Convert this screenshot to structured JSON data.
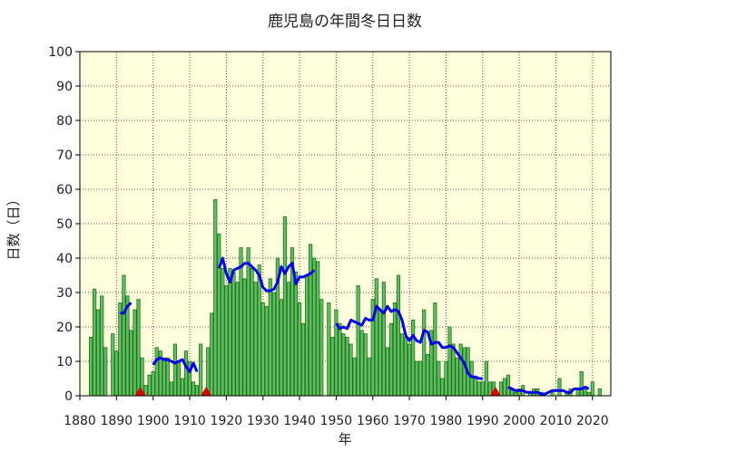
{
  "chart_data": {
    "type": "bar",
    "title": "鹿児島の年間冬日日数",
    "xlabel": "年",
    "ylabel": "日数（日）",
    "xlim": [
      1880,
      2025
    ],
    "ylim": [
      0,
      100
    ],
    "xticks": [
      1880,
      1890,
      1900,
      1910,
      1920,
      1930,
      1940,
      1950,
      1960,
      1970,
      1980,
      1990,
      2000,
      2010,
      2020
    ],
    "yticks": [
      0,
      10,
      20,
      30,
      40,
      50,
      60,
      70,
      80,
      90,
      100
    ],
    "grid": true,
    "plot_background": "#ffffdd",
    "bar_fill": "#5fc05f",
    "bar_edge": "#1f6f1f",
    "line_color": "#0000ee",
    "marker_color": "#dd0000",
    "bars": {
      "years": [
        1883,
        1884,
        1885,
        1886,
        1887,
        1888,
        1889,
        1890,
        1891,
        1892,
        1893,
        1894,
        1895,
        1896,
        1897,
        1898,
        1899,
        1900,
        1901,
        1902,
        1903,
        1904,
        1905,
        1906,
        1907,
        1908,
        1909,
        1910,
        1911,
        1912,
        1913,
        1914,
        1915,
        1916,
        1917,
        1918,
        1919,
        1920,
        1921,
        1922,
        1923,
        1924,
        1925,
        1926,
        1927,
        1928,
        1929,
        1930,
        1931,
        1932,
        1933,
        1934,
        1935,
        1936,
        1937,
        1938,
        1939,
        1940,
        1941,
        1942,
        1943,
        1944,
        1945,
        1946,
        1947,
        1948,
        1949,
        1950,
        1951,
        1952,
        1953,
        1954,
        1955,
        1956,
        1957,
        1958,
        1959,
        1960,
        1961,
        1962,
        1963,
        1964,
        1965,
        1966,
        1967,
        1968,
        1969,
        1970,
        1971,
        1972,
        1973,
        1974,
        1975,
        1976,
        1977,
        1978,
        1979,
        1980,
        1981,
        1982,
        1983,
        1984,
        1985,
        1986,
        1987,
        1988,
        1989,
        1990,
        1991,
        1992,
        1993,
        1994,
        1995,
        1996,
        1997,
        1998,
        1999,
        2000,
        2001,
        2002,
        2003,
        2004,
        2005,
        2006,
        2007,
        2008,
        2009,
        2010,
        2011,
        2012,
        2013,
        2014,
        2015,
        2016,
        2017,
        2018,
        2019,
        2020,
        2021,
        2022,
        2023
      ],
      "values": [
        17,
        31,
        25,
        29,
        14,
        0,
        18,
        13,
        27,
        35,
        29,
        19,
        25,
        28,
        11,
        3,
        6,
        7,
        14,
        13,
        11,
        11,
        4,
        15,
        10,
        5,
        13,
        10,
        4,
        3,
        15,
        1,
        14,
        24,
        57,
        47,
        37,
        32,
        37,
        36,
        33,
        43,
        34,
        43,
        37,
        33,
        38,
        27,
        26,
        34,
        30,
        40,
        28,
        52,
        33,
        43,
        36,
        27,
        21,
        35,
        44,
        40,
        39,
        28,
        0,
        27,
        17,
        25,
        21,
        18,
        17,
        15,
        11,
        32,
        19,
        18,
        11,
        28,
        34,
        25,
        33,
        14,
        21,
        27,
        35,
        18,
        17,
        15,
        22,
        10,
        10,
        25,
        12,
        19,
        27,
        10,
        5,
        10,
        20,
        15,
        11,
        15,
        14,
        14,
        10,
        5,
        4,
        4,
        10,
        4,
        4,
        0,
        4,
        5,
        6,
        2,
        1,
        2,
        3,
        0,
        1,
        2,
        2,
        1,
        0,
        0,
        1,
        0,
        5,
        0,
        1,
        2,
        0,
        2,
        7,
        2,
        1,
        4,
        0,
        2,
        0
      ]
    },
    "moving_average": [
      {
        "x": [
          1891,
          1892,
          1893,
          1894
        ],
        "y": [
          24,
          24,
          26,
          27
        ]
      },
      {
        "x": [
          1900,
          1901,
          1902,
          1903,
          1904,
          1905,
          1906,
          1907,
          1908,
          1909,
          1910,
          1911,
          1912
        ],
        "y": [
          9,
          10.5,
          11,
          10.5,
          10.5,
          10,
          9.5,
          10,
          10.5,
          8.5,
          7,
          9.5,
          7
        ]
      },
      {
        "x": [
          1918,
          1919,
          1920,
          1921,
          1922,
          1923,
          1924,
          1925,
          1926,
          1927,
          1928,
          1929,
          1930,
          1931,
          1932,
          1933,
          1934,
          1935,
          1936,
          1937,
          1938,
          1939,
          1940,
          1941,
          1942,
          1943,
          1944
        ],
        "y": [
          37,
          40,
          35.5,
          33,
          36.5,
          37,
          37.5,
          38.5,
          38.5,
          37.5,
          36.5,
          35,
          31.5,
          30.5,
          30.5,
          31,
          33,
          37.5,
          35.5,
          37.5,
          38.5,
          32.5,
          34.5,
          34.5,
          35,
          35.5,
          36.5
        ]
      },
      {
        "x": [
          1950,
          1951,
          1952,
          1953,
          1954,
          1955,
          1956,
          1957,
          1958,
          1959,
          1960,
          1961,
          1962,
          1963,
          1964,
          1965,
          1966,
          1967,
          1968,
          1969,
          1970,
          1971,
          1972,
          1973,
          1974,
          1975,
          1976,
          1977,
          1978,
          1979,
          1980,
          1981,
          1982,
          1983,
          1984,
          1985,
          1986,
          1987,
          1988,
          1989,
          1990
        ],
        "y": [
          21,
          19.5,
          20,
          19.5,
          22,
          21.5,
          21,
          20.5,
          22.5,
          22,
          22,
          26,
          25,
          24,
          26,
          24.5,
          25,
          24.5,
          22,
          17.5,
          16,
          17.5,
          16,
          15.5,
          19,
          18.5,
          15,
          15.5,
          15.5,
          14,
          14,
          14.5,
          14,
          12.5,
          11,
          9.5,
          6.5,
          5.5,
          5.5,
          5,
          5
        ]
      },
      {
        "x": [
          1997,
          1998,
          1999,
          2000,
          2001,
          2002,
          2003,
          2004,
          2005,
          2006,
          2007,
          2008,
          2009,
          2010,
          2011,
          2012,
          2013,
          2014,
          2015,
          2016,
          2017,
          2018,
          2019
        ],
        "y": [
          2.5,
          2,
          1.5,
          1.5,
          1.5,
          1,
          1,
          1,
          1,
          0.5,
          0.5,
          1,
          1.5,
          1.5,
          1.5,
          1.5,
          1,
          1,
          2,
          2,
          2,
          2.5,
          2
        ]
      }
    ],
    "markers": {
      "years": [
        1896.5,
        1914.5,
        1993.5
      ],
      "value": 0
    }
  }
}
